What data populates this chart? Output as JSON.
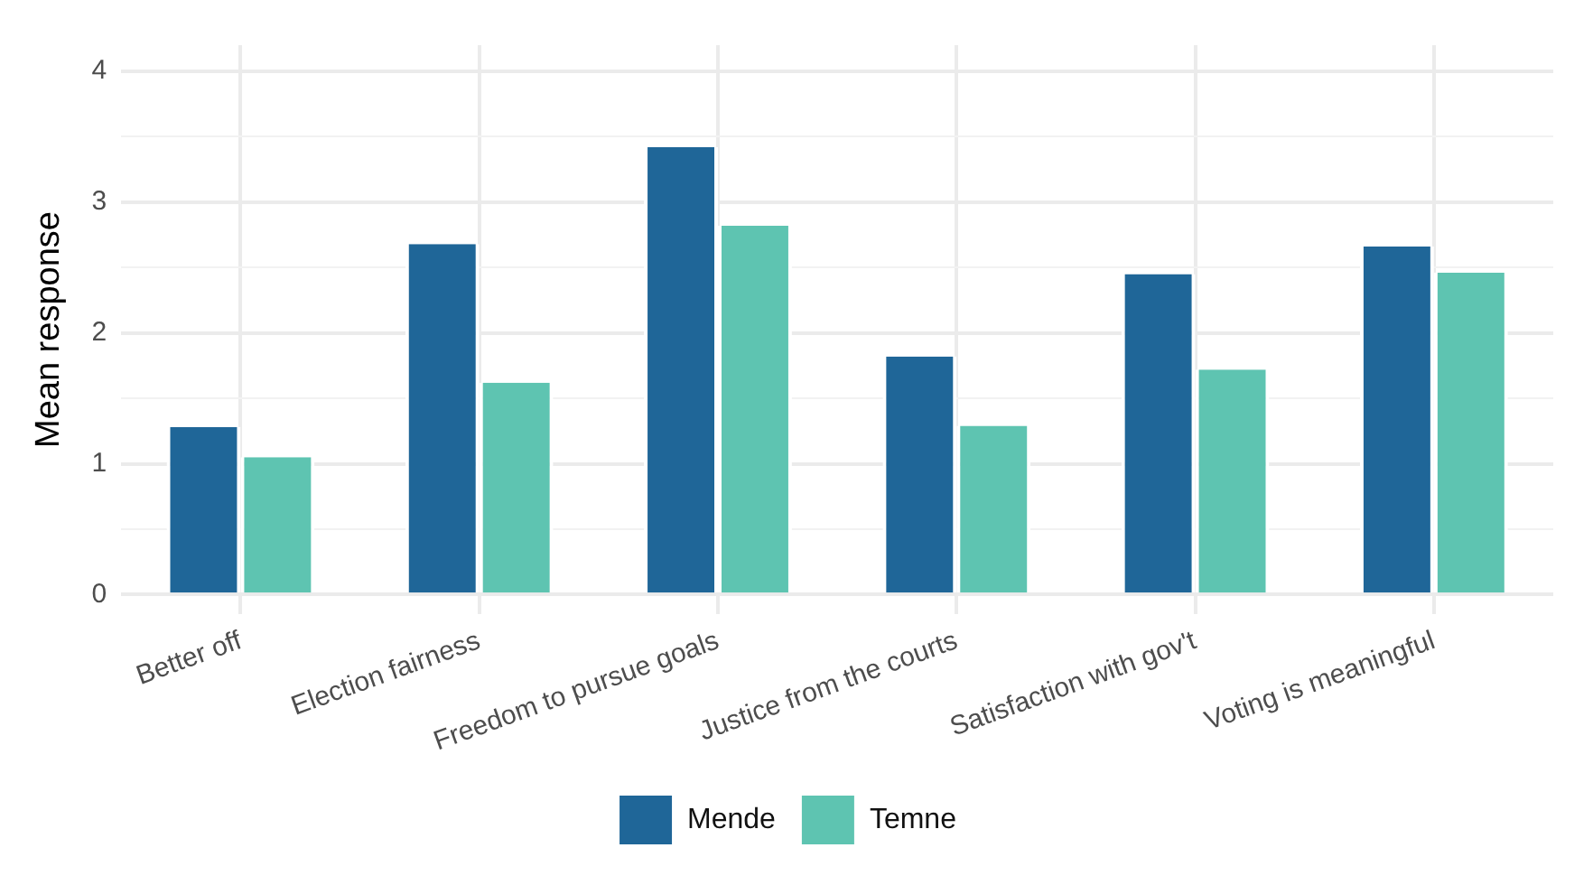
{
  "chart_data": {
    "type": "bar",
    "ylabel": "Mean response",
    "categories": [
      "Better off",
      "Election fairness",
      "Freedom to pursue goals",
      "Justice from the courts",
      "Satisfaction with gov't",
      "Voting is meaningful"
    ],
    "series": [
      {
        "name": "Mende",
        "color": "#1f6698",
        "values": [
          1.28,
          2.68,
          3.42,
          1.82,
          2.45,
          2.66
        ]
      },
      {
        "name": "Temne",
        "color": "#5ec4b1",
        "values": [
          1.05,
          1.62,
          2.82,
          1.29,
          1.72,
          2.46
        ]
      }
    ],
    "ylim": [
      -0.15,
      4.2
    ],
    "yticks": [
      0,
      {
        "value": 0.5,
        "label": null
      },
      1,
      {
        "value": 1.5,
        "label": null
      },
      2,
      {
        "value": 2.5,
        "label": null
      },
      3,
      {
        "value": 3.5,
        "label": null
      },
      4
    ],
    "grid": true,
    "legend": "bottom"
  }
}
